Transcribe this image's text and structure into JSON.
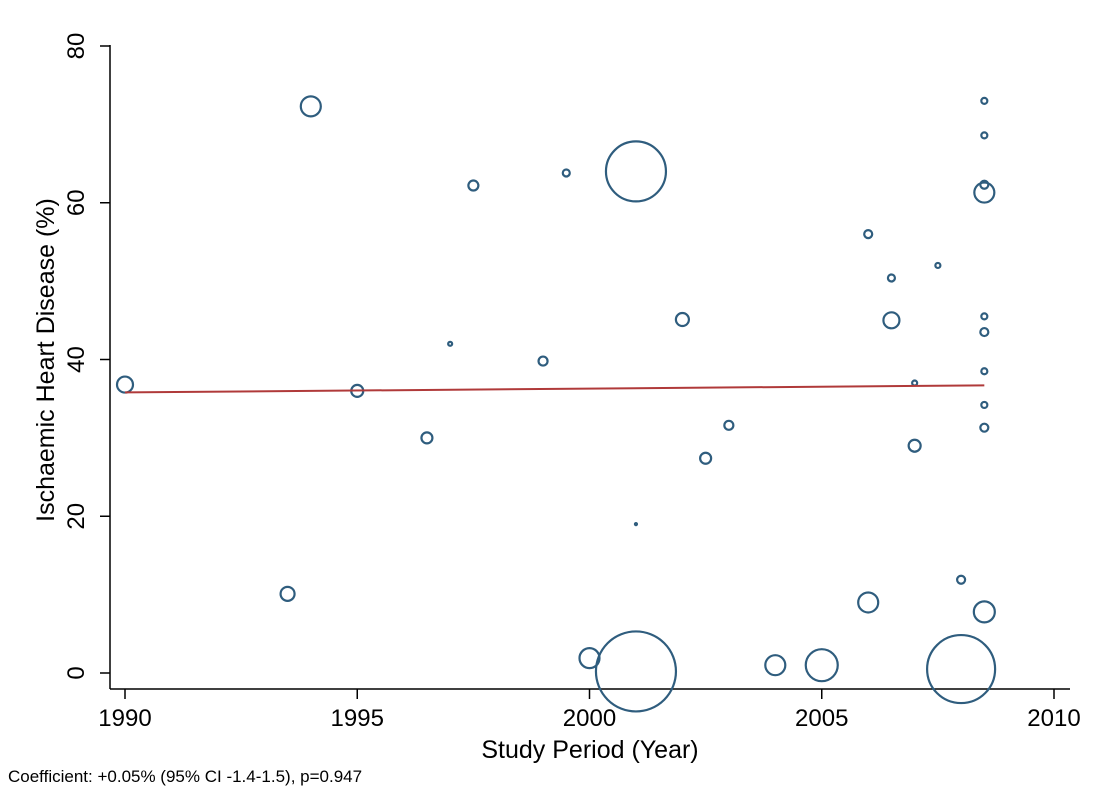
{
  "chart_data": {
    "type": "scatter",
    "xlabel": "Study Period (Year)",
    "ylabel": "Ischaemic Heart Disease (%)",
    "xlim": [
      1990,
      2010
    ],
    "ylim": [
      0,
      80
    ],
    "xticks": [
      "1990",
      "1995",
      "2000",
      "2005",
      "2010"
    ],
    "yticks": [
      "0",
      "20",
      "40",
      "60",
      "80"
    ],
    "grid": false,
    "marker_color": "#2f5d7e",
    "fit_color": "#b03a3a",
    "fit_line": {
      "x": [
        1990,
        2008.5
      ],
      "y": [
        35.8,
        36.7
      ]
    },
    "caption": "Coefficient: +0.05% (95% CI -1.4-1.5), p=0.947",
    "points": [
      {
        "x": 1990.0,
        "y": 36.8,
        "w": 8
      },
      {
        "x": 1993.5,
        "y": 10.1,
        "w": 7
      },
      {
        "x": 1994.0,
        "y": 72.3,
        "w": 10
      },
      {
        "x": 1995.0,
        "y": 36.0,
        "w": 6
      },
      {
        "x": 1996.5,
        "y": 30.0,
        "w": 5.5
      },
      {
        "x": 1997.0,
        "y": 42.0,
        "w": 2
      },
      {
        "x": 1997.5,
        "y": 62.2,
        "w": 5
      },
      {
        "x": 1999.0,
        "y": 39.8,
        "w": 4.5
      },
      {
        "x": 1999.5,
        "y": 63.8,
        "w": 3.5
      },
      {
        "x": 2000.0,
        "y": 1.9,
        "w": 10
      },
      {
        "x": 2001.0,
        "y": 64.0,
        "w": 30
      },
      {
        "x": 2001.0,
        "y": 0.2,
        "w": 40
      },
      {
        "x": 2001.0,
        "y": 19.0,
        "w": 1
      },
      {
        "x": 2002.0,
        "y": 45.1,
        "w": 6.5
      },
      {
        "x": 2002.5,
        "y": 27.4,
        "w": 5.5
      },
      {
        "x": 2003.0,
        "y": 31.6,
        "w": 4.5
      },
      {
        "x": 2004.0,
        "y": 1.0,
        "w": 10
      },
      {
        "x": 2005.0,
        "y": 1.0,
        "w": 16
      },
      {
        "x": 2006.0,
        "y": 56.0,
        "w": 4
      },
      {
        "x": 2006.0,
        "y": 9.0,
        "w": 10
      },
      {
        "x": 2006.5,
        "y": 45.0,
        "w": 8
      },
      {
        "x": 2006.5,
        "y": 50.4,
        "w": 3.5
      },
      {
        "x": 2007.0,
        "y": 37.0,
        "w": 2.5
      },
      {
        "x": 2007.0,
        "y": 29.0,
        "w": 6
      },
      {
        "x": 2007.5,
        "y": 52.0,
        "w": 2.5
      },
      {
        "x": 2008.0,
        "y": 0.5,
        "w": 34
      },
      {
        "x": 2008.0,
        "y": 11.9,
        "w": 4
      },
      {
        "x": 2008.5,
        "y": 73.0,
        "w": 3
      },
      {
        "x": 2008.5,
        "y": 68.6,
        "w": 3
      },
      {
        "x": 2008.5,
        "y": 62.3,
        "w": 4
      },
      {
        "x": 2008.5,
        "y": 61.3,
        "w": 10
      },
      {
        "x": 2008.5,
        "y": 45.5,
        "w": 3
      },
      {
        "x": 2008.5,
        "y": 43.5,
        "w": 4
      },
      {
        "x": 2008.5,
        "y": 38.5,
        "w": 3
      },
      {
        "x": 2008.5,
        "y": 34.2,
        "w": 3
      },
      {
        "x": 2008.5,
        "y": 31.3,
        "w": 4
      },
      {
        "x": 2008.5,
        "y": 7.8,
        "w": 10.5
      }
    ]
  }
}
